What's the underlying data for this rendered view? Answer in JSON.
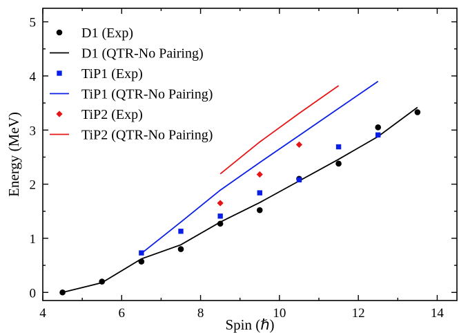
{
  "chart_data": {
    "type": "scatter",
    "title": "",
    "xlabel": "Spin (ℏ)",
    "ylabel": "Energy (MeV)",
    "xlim": [
      4,
      14.5
    ],
    "ylim": [
      -0.15,
      5.25
    ],
    "xticks": [
      4,
      6,
      8,
      10,
      12,
      14
    ],
    "yticks": [
      0,
      1,
      2,
      3,
      4,
      5
    ],
    "grid": false,
    "legend_position": "top-left",
    "series": [
      {
        "name": "D1 (Exp)",
        "kind": "points",
        "marker": "circle",
        "color": "#000000",
        "x": [
          4.5,
          5.5,
          6.5,
          7.5,
          8.5,
          9.5,
          10.5,
          11.5,
          12.5,
          13.5
        ],
        "y": [
          0.0,
          0.2,
          0.57,
          0.8,
          1.27,
          1.52,
          2.1,
          2.38,
          3.05,
          3.33
        ]
      },
      {
        "name": "D1 (QTR-No Pairing)",
        "kind": "line",
        "color": "#000000",
        "x": [
          4.5,
          5.5,
          6.5,
          7.5,
          8.5,
          9.5,
          10.5,
          11.5,
          12.5,
          13.5
        ],
        "y": [
          0.0,
          0.18,
          0.62,
          0.88,
          1.3,
          1.66,
          2.06,
          2.46,
          2.88,
          3.42
        ]
      },
      {
        "name": "TiP1 (Exp)",
        "kind": "points",
        "marker": "square",
        "color": "#0a1ee6",
        "x": [
          6.5,
          7.5,
          8.5,
          9.5,
          10.5,
          11.5,
          12.5
        ],
        "y": [
          0.73,
          1.13,
          1.41,
          1.84,
          2.08,
          2.69,
          2.91
        ]
      },
      {
        "name": "TiP1 (QTR-No Pairing)",
        "kind": "line",
        "color": "#0a1ee6",
        "x": [
          6.5,
          7.5,
          8.5,
          9.5,
          10.5,
          11.5,
          12.5
        ],
        "y": [
          0.72,
          1.3,
          1.89,
          2.4,
          2.9,
          3.4,
          3.9
        ]
      },
      {
        "name": "TiP2 (Exp)",
        "kind": "points",
        "marker": "diamond",
        "color": "#e61414",
        "x": [
          8.5,
          9.5,
          10.5
        ],
        "y": [
          1.65,
          2.18,
          2.73
        ]
      },
      {
        "name": "TiP2 (QTR-No Pairing)",
        "kind": "line",
        "color": "#e61414",
        "x": [
          8.5,
          9.5,
          10.5,
          11.5
        ],
        "y": [
          2.19,
          2.78,
          3.31,
          3.82
        ]
      }
    ]
  }
}
